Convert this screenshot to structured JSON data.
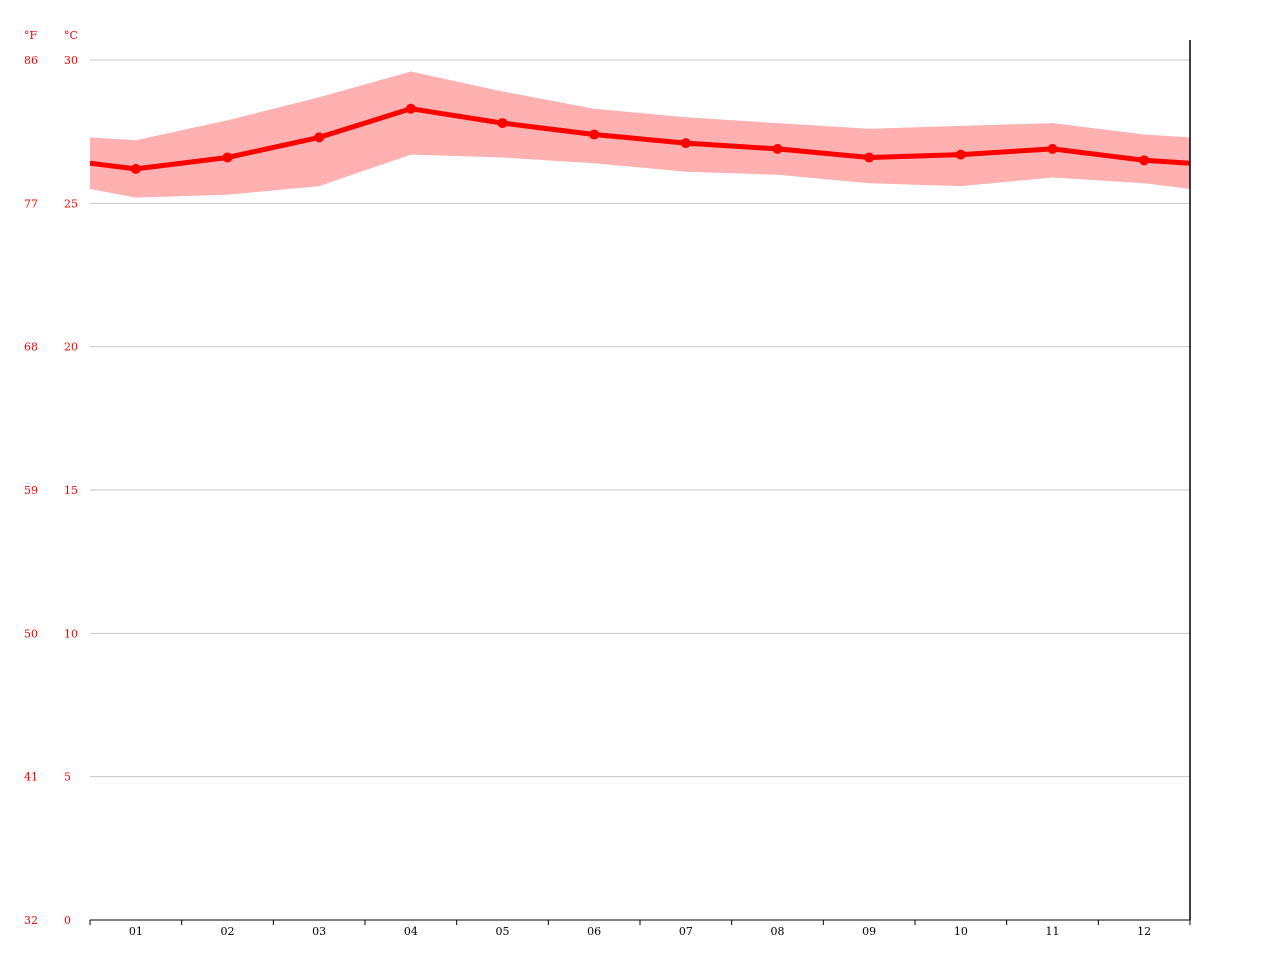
{
  "chart_data": {
    "type": "line",
    "categories": [
      "01",
      "02",
      "03",
      "04",
      "05",
      "06",
      "07",
      "08",
      "09",
      "10",
      "11",
      "12"
    ],
    "unit_labels": {
      "fahrenheit": "°F",
      "celsius": "°C"
    },
    "y_ticks_celsius": [
      "0",
      "5",
      "10",
      "15",
      "20",
      "25",
      "30"
    ],
    "y_ticks_fahrenheit": [
      "32",
      "41",
      "50",
      "59",
      "68",
      "77",
      "86"
    ],
    "ylim": [
      0,
      30
    ],
    "grid": true,
    "series": [
      {
        "values": [
          26.2,
          26.6,
          27.3,
          28.3,
          27.8,
          27.4,
          27.1,
          26.9,
          26.6,
          26.7,
          26.9,
          26.5
        ]
      }
    ],
    "band": {
      "max": [
        27.2,
        27.9,
        28.7,
        29.6,
        28.9,
        28.3,
        28.0,
        27.8,
        27.6,
        27.7,
        27.8,
        27.4
      ],
      "min": [
        25.2,
        25.3,
        25.6,
        26.7,
        26.6,
        26.4,
        26.1,
        26.0,
        25.7,
        25.6,
        25.9,
        25.7
      ],
      "start": {
        "max": 27.3,
        "min": 25.5,
        "mid": 26.4
      },
      "end": {
        "max": 27.3,
        "min": 25.5,
        "mid": 26.4
      }
    },
    "colors": {
      "line": "#ff0000",
      "band": "#ffb0b0",
      "grid": "#c8c8c8",
      "axis": "#000000",
      "tick_label_y": "#ff0000",
      "tick_label_x": "#000000"
    }
  }
}
